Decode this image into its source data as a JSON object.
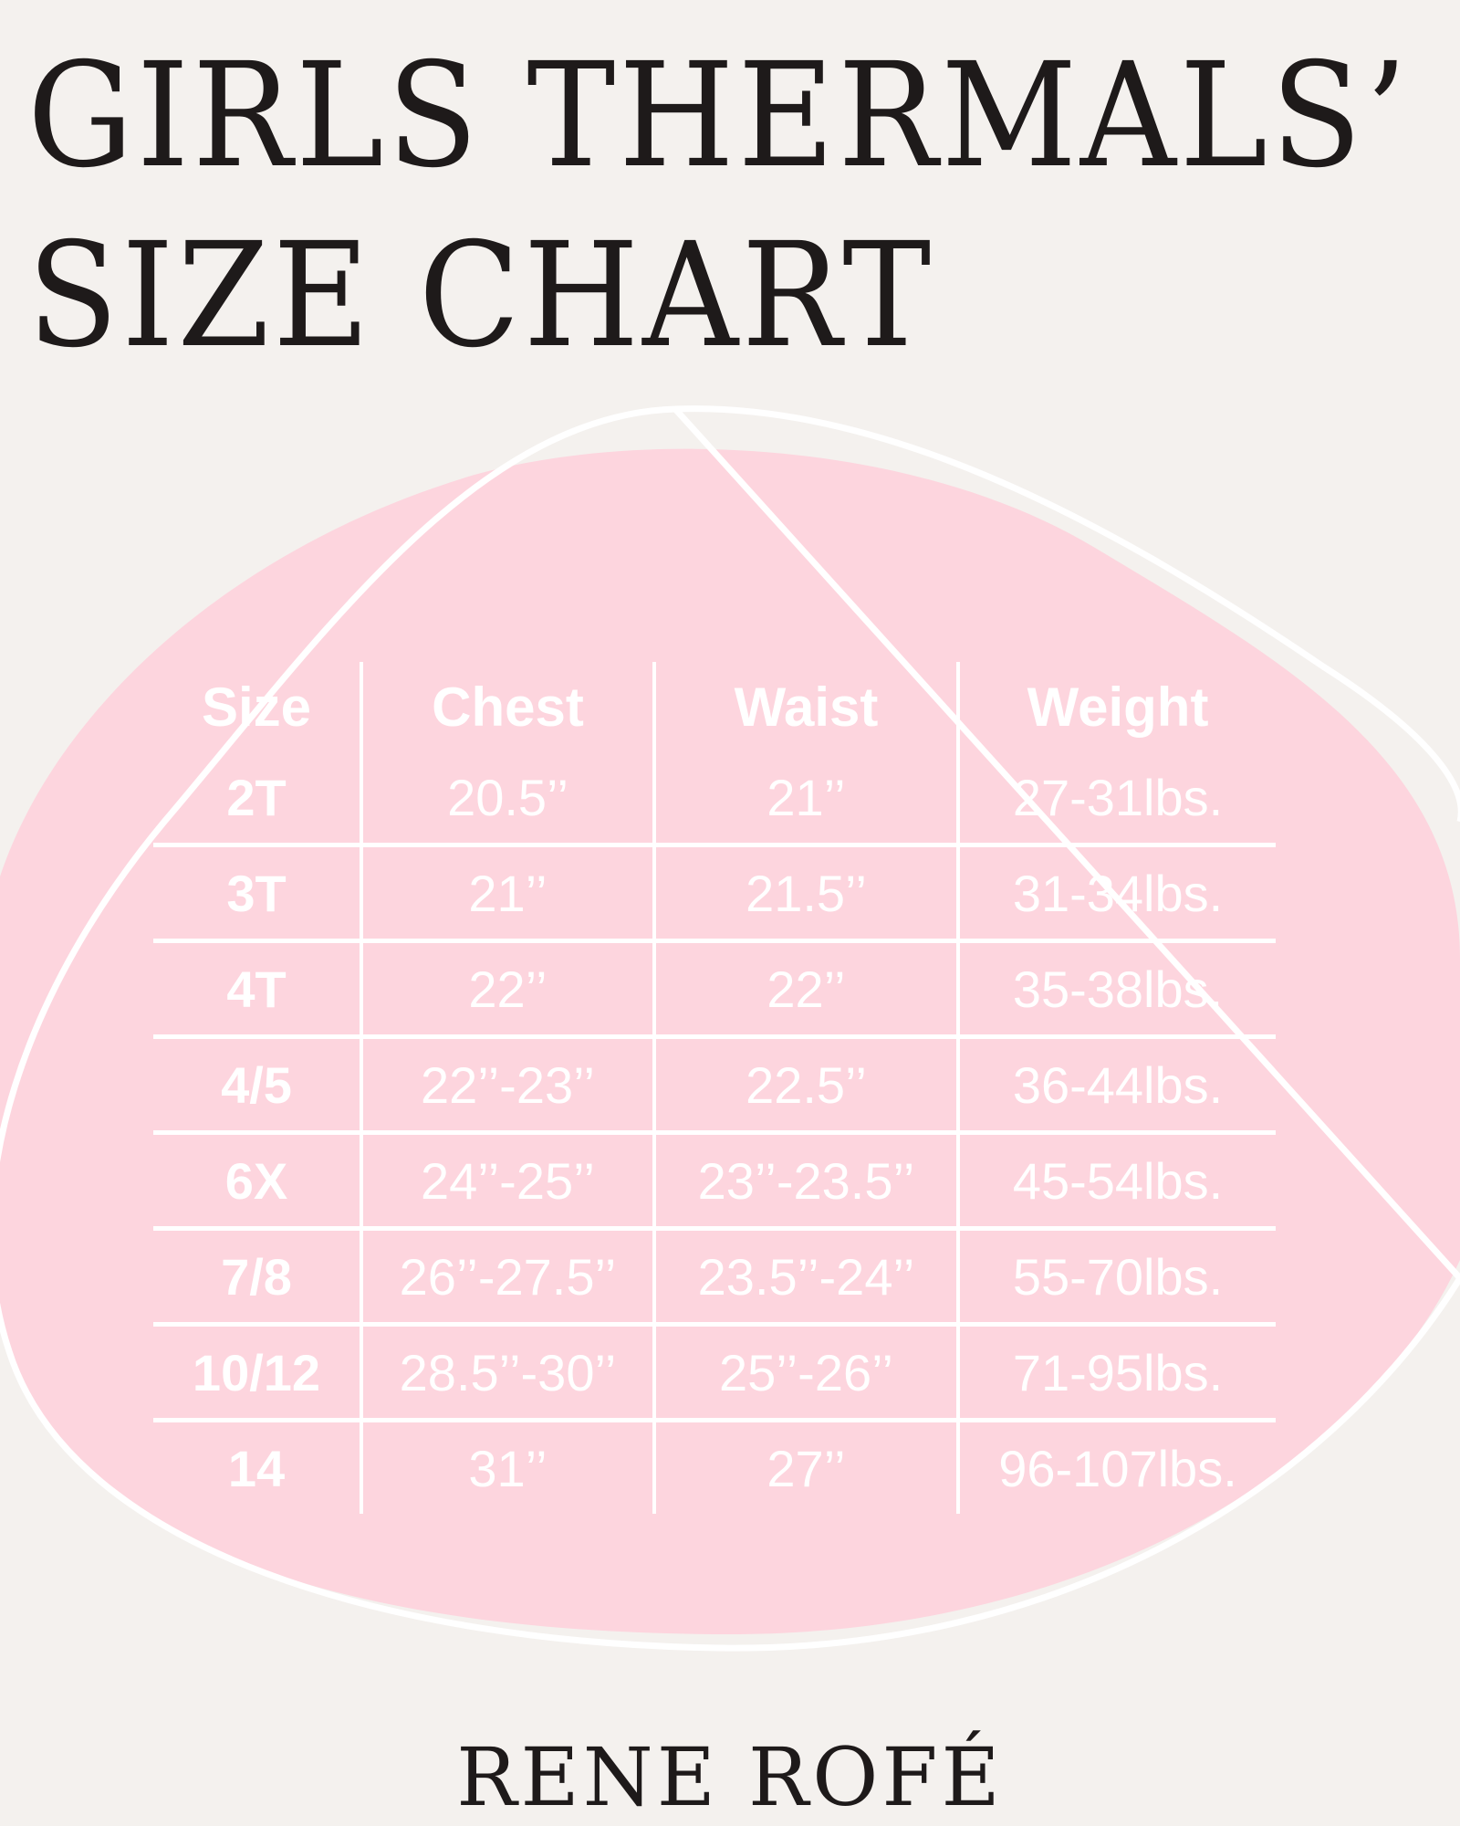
{
  "title": {
    "line1": "GIRLS THERMALS’",
    "line2": "SIZE CHART"
  },
  "colors": {
    "background": "#f4f1ee",
    "blob": "#fdd5de",
    "text_dark": "#1e1a1a",
    "table_text": "#ffffff"
  },
  "table": {
    "headers": [
      "Size",
      "Chest",
      "Waist",
      "Weight"
    ],
    "rows": [
      [
        "2T",
        "20.5’’",
        "21’’",
        "27-31lbs."
      ],
      [
        "3T",
        "21’’",
        "21.5’’",
        "31-34lbs."
      ],
      [
        "4T",
        "22’’",
        "22’’",
        "35-38lbs."
      ],
      [
        "4/5",
        "22’’-23’’",
        "22.5’’",
        "36-44lbs."
      ],
      [
        "6X",
        "24’’-25’’",
        "23’’-23.5’’",
        "45-54lbs."
      ],
      [
        "7/8",
        "26’’-27.5’’",
        "23.5’’-24’’",
        "55-70lbs."
      ],
      [
        "10/12",
        "28.5’’-30’’",
        "25’’-26’’",
        "71-95lbs."
      ],
      [
        "14",
        "31’’",
        "27’’",
        "96-107lbs."
      ]
    ]
  },
  "brand": "RENE ROFÉ"
}
